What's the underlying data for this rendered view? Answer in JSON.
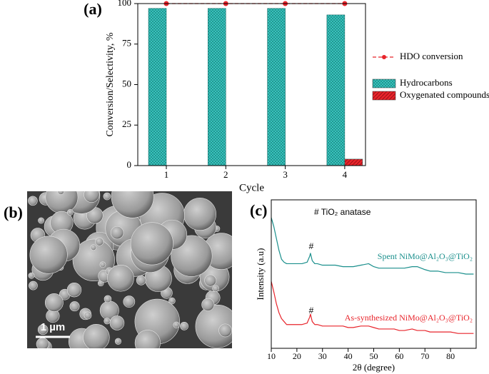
{
  "chart_data": [
    {
      "type": "bar",
      "label": "(a)",
      "xlabel": "Cycle",
      "ylabel": "Conversion/Selectivity, %",
      "categories": [
        "1",
        "2",
        "3",
        "4"
      ],
      "series": [
        {
          "name": "HDO conversion",
          "type": "line",
          "color": "#e8242b",
          "values": [
            100,
            100,
            100,
            100
          ]
        },
        {
          "name": "Hydrocarbons",
          "type": "bar",
          "color": "#2ab7b0",
          "values": [
            97,
            97,
            97,
            93
          ]
        },
        {
          "name": "Oxygenated compounds",
          "type": "bar",
          "color": "#e8242b",
          "values": [
            0,
            0,
            0,
            4
          ]
        }
      ],
      "ylim": [
        0,
        100
      ],
      "yticks": [
        0,
        25,
        50,
        75,
        100
      ],
      "legend": "right"
    },
    {
      "type": "line",
      "label": "(c)",
      "xlabel": "2θ (degree)",
      "ylabel": "Intensity (a.u)",
      "annotations": [
        "# TiO₂ anatase",
        "#",
        "#"
      ],
      "x": [
        10,
        11,
        12,
        13,
        14,
        15,
        16,
        18,
        20,
        22,
        24,
        25,
        25.3,
        26,
        27,
        28,
        30,
        32,
        35,
        38,
        40,
        42,
        45,
        48,
        50,
        52,
        55,
        58,
        60,
        62,
        65,
        67,
        70,
        72,
        75,
        78,
        80,
        83,
        86,
        89
      ],
      "series": [
        {
          "name": "Spent NiMo@Al₂O₃@TiO₂",
          "color": "#1a8f8c",
          "values": [
            88,
            82,
            74,
            66,
            60,
            58,
            57,
            57,
            57,
            57,
            58,
            62,
            64,
            59,
            57,
            57,
            56,
            56,
            56,
            55,
            55,
            55,
            56,
            57,
            55,
            54,
            54,
            54,
            54,
            54,
            55,
            55,
            53,
            52,
            52,
            51,
            51,
            51,
            50,
            50
          ]
        },
        {
          "name": "As-synthesized NiMo@Al₂O₃@TiO₂",
          "color": "#e8242b",
          "values": [
            45,
            38,
            30,
            24,
            20,
            18,
            16,
            16,
            16,
            16,
            17,
            21,
            23,
            18,
            16,
            16,
            15,
            15,
            15,
            15,
            14,
            14,
            15,
            15,
            14,
            13,
            13,
            13,
            12,
            12,
            13,
            12,
            12,
            11,
            11,
            11,
            11,
            10,
            10,
            10
          ]
        }
      ],
      "xlim": [
        10,
        90
      ],
      "xticks": [
        10,
        20,
        30,
        40,
        50,
        60,
        70,
        80
      ],
      "ylim": [
        0,
        100
      ]
    }
  ],
  "image": {
    "label": "(b)",
    "scale_bar": "1 µm"
  }
}
